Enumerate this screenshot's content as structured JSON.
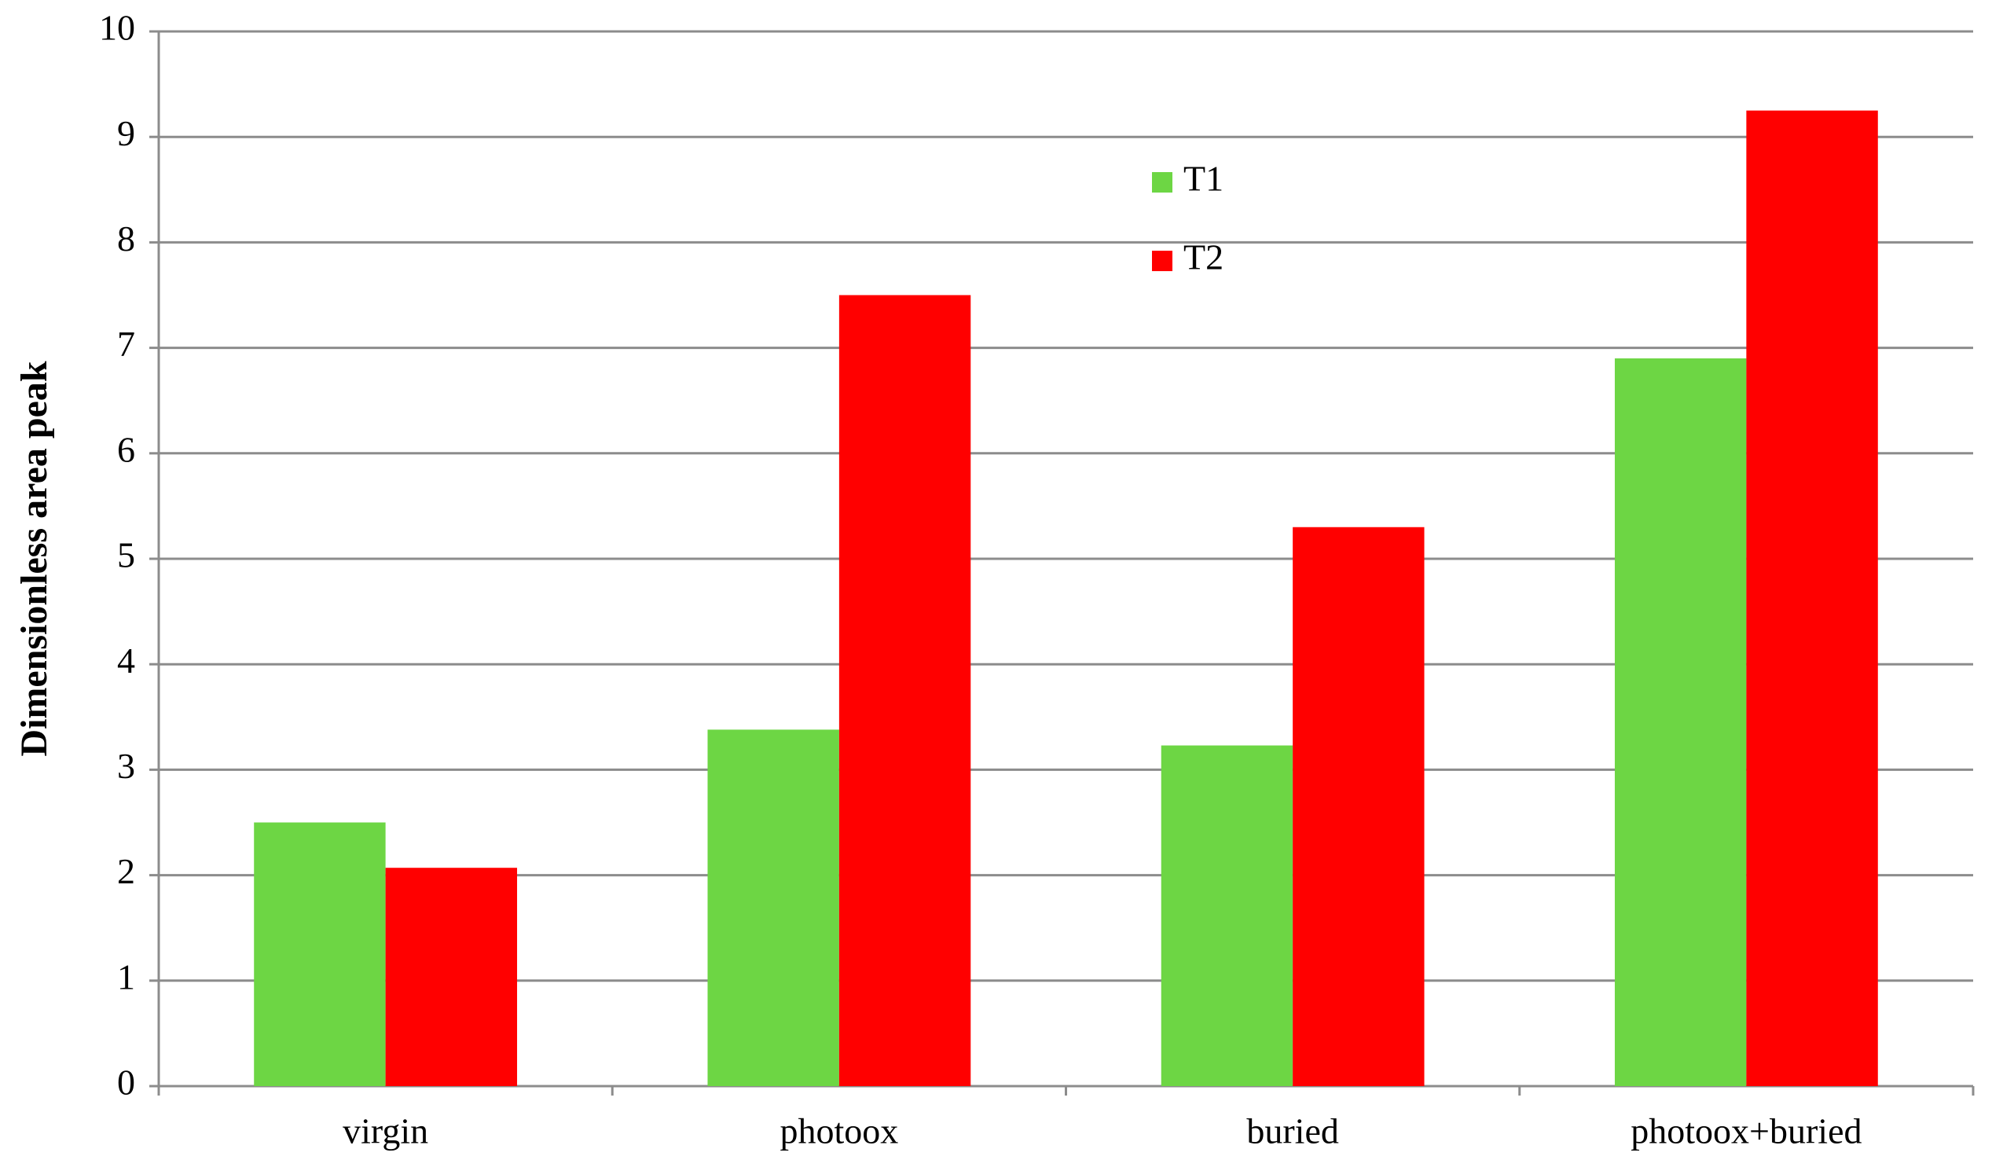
{
  "chart_data": {
    "type": "bar",
    "y_label": "Dimensionless area peak",
    "categories": [
      "virgin",
      "photoox",
      "buried",
      "photoox+buried"
    ],
    "series": [
      {
        "name": "T1",
        "color": "#6dd644",
        "values": [
          2.5,
          3.38,
          3.23,
          6.9
        ]
      },
      {
        "name": "T2",
        "color": "#ff0000",
        "values": [
          2.07,
          7.5,
          5.3,
          9.25
        ]
      }
    ],
    "ylim": [
      0,
      10
    ],
    "yticks": [
      0,
      1,
      2,
      3,
      4,
      5,
      6,
      7,
      8,
      9,
      10
    ],
    "grid": true
  }
}
